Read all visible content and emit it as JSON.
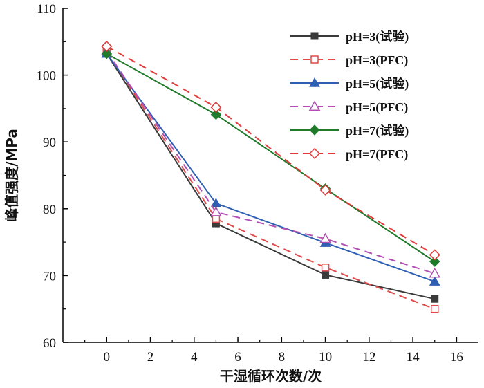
{
  "chart_data": {
    "type": "line",
    "xlabel": "干湿循环次数/次",
    "ylabel": "峰值强度/MPa",
    "xlim": [
      -2,
      17
    ],
    "ylim": [
      60,
      110
    ],
    "xticks": [
      0,
      2,
      4,
      6,
      8,
      10,
      12,
      14,
      16
    ],
    "yticks": [
      60,
      70,
      80,
      90,
      100,
      110
    ],
    "legend_position": "top-right",
    "x": [
      0,
      5,
      10,
      15
    ],
    "series": [
      {
        "name": "pH=3(试验)",
        "values": [
          103.2,
          77.8,
          70.1,
          66.5
        ],
        "color": "#3a3a3a",
        "dash": "solid",
        "marker": "square",
        "filled": true
      },
      {
        "name": "pH=3(PFC)",
        "values": [
          103.5,
          78.5,
          71.2,
          65.0
        ],
        "color": "#e04a4a",
        "dash": "dashed",
        "marker": "square",
        "filled": false
      },
      {
        "name": "pH=5(试验)",
        "values": [
          103.2,
          80.8,
          74.9,
          69.1
        ],
        "color": "#2f5fb3",
        "dash": "solid",
        "marker": "triangle",
        "filled": true
      },
      {
        "name": "pH=5(PFC)",
        "values": [
          103.6,
          79.5,
          75.5,
          70.3
        ],
        "color": "#b34fb3",
        "dash": "dashed",
        "marker": "triangle",
        "filled": false
      },
      {
        "name": "pH=7(试验)",
        "values": [
          103.2,
          94.1,
          83.0,
          72.1
        ],
        "color": "#1f7a2a",
        "dash": "solid",
        "marker": "diamond",
        "filled": true
      },
      {
        "name": "pH=7(PFC)",
        "values": [
          104.3,
          95.2,
          82.8,
          73.1
        ],
        "color": "#e03a3a",
        "dash": "dashed",
        "marker": "diamond",
        "filled": false
      }
    ]
  }
}
